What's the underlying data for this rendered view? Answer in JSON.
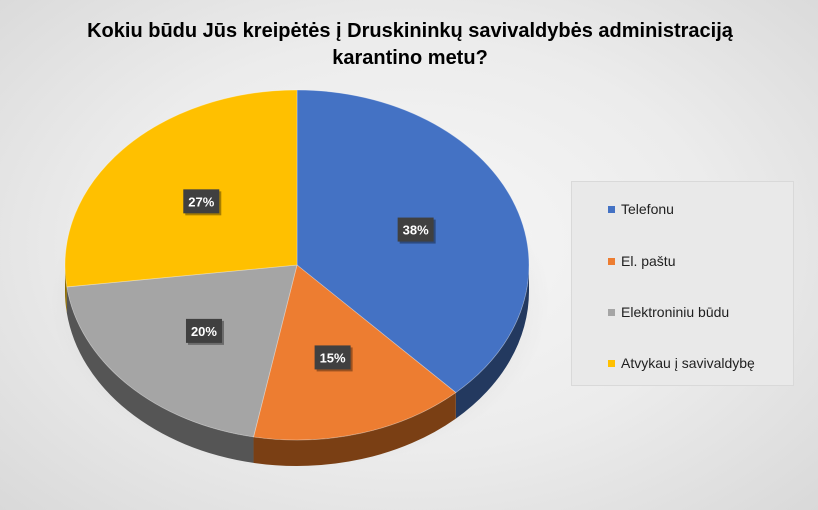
{
  "chart_data": {
    "type": "pie",
    "title": "Kokiu būdu Jūs kreipėtės į Druskininkų savivaldybės administraciją karantino metu?",
    "categories": [
      "Telefonu",
      "El. paštu",
      "Elektroniniu būdu",
      "Atvykau į savivaldybę"
    ],
    "values": [
      38,
      15,
      20,
      27
    ],
    "data_labels": [
      "38%",
      "15%",
      "20%",
      "27%"
    ],
    "colors": [
      "#4472c4",
      "#ed7d31",
      "#a5a5a5",
      "#ffc000"
    ],
    "side_colors": [
      "#23395f",
      "#7a3f14",
      "#555555",
      "#8a6900"
    ],
    "style": "3d",
    "legend_position": "right"
  }
}
